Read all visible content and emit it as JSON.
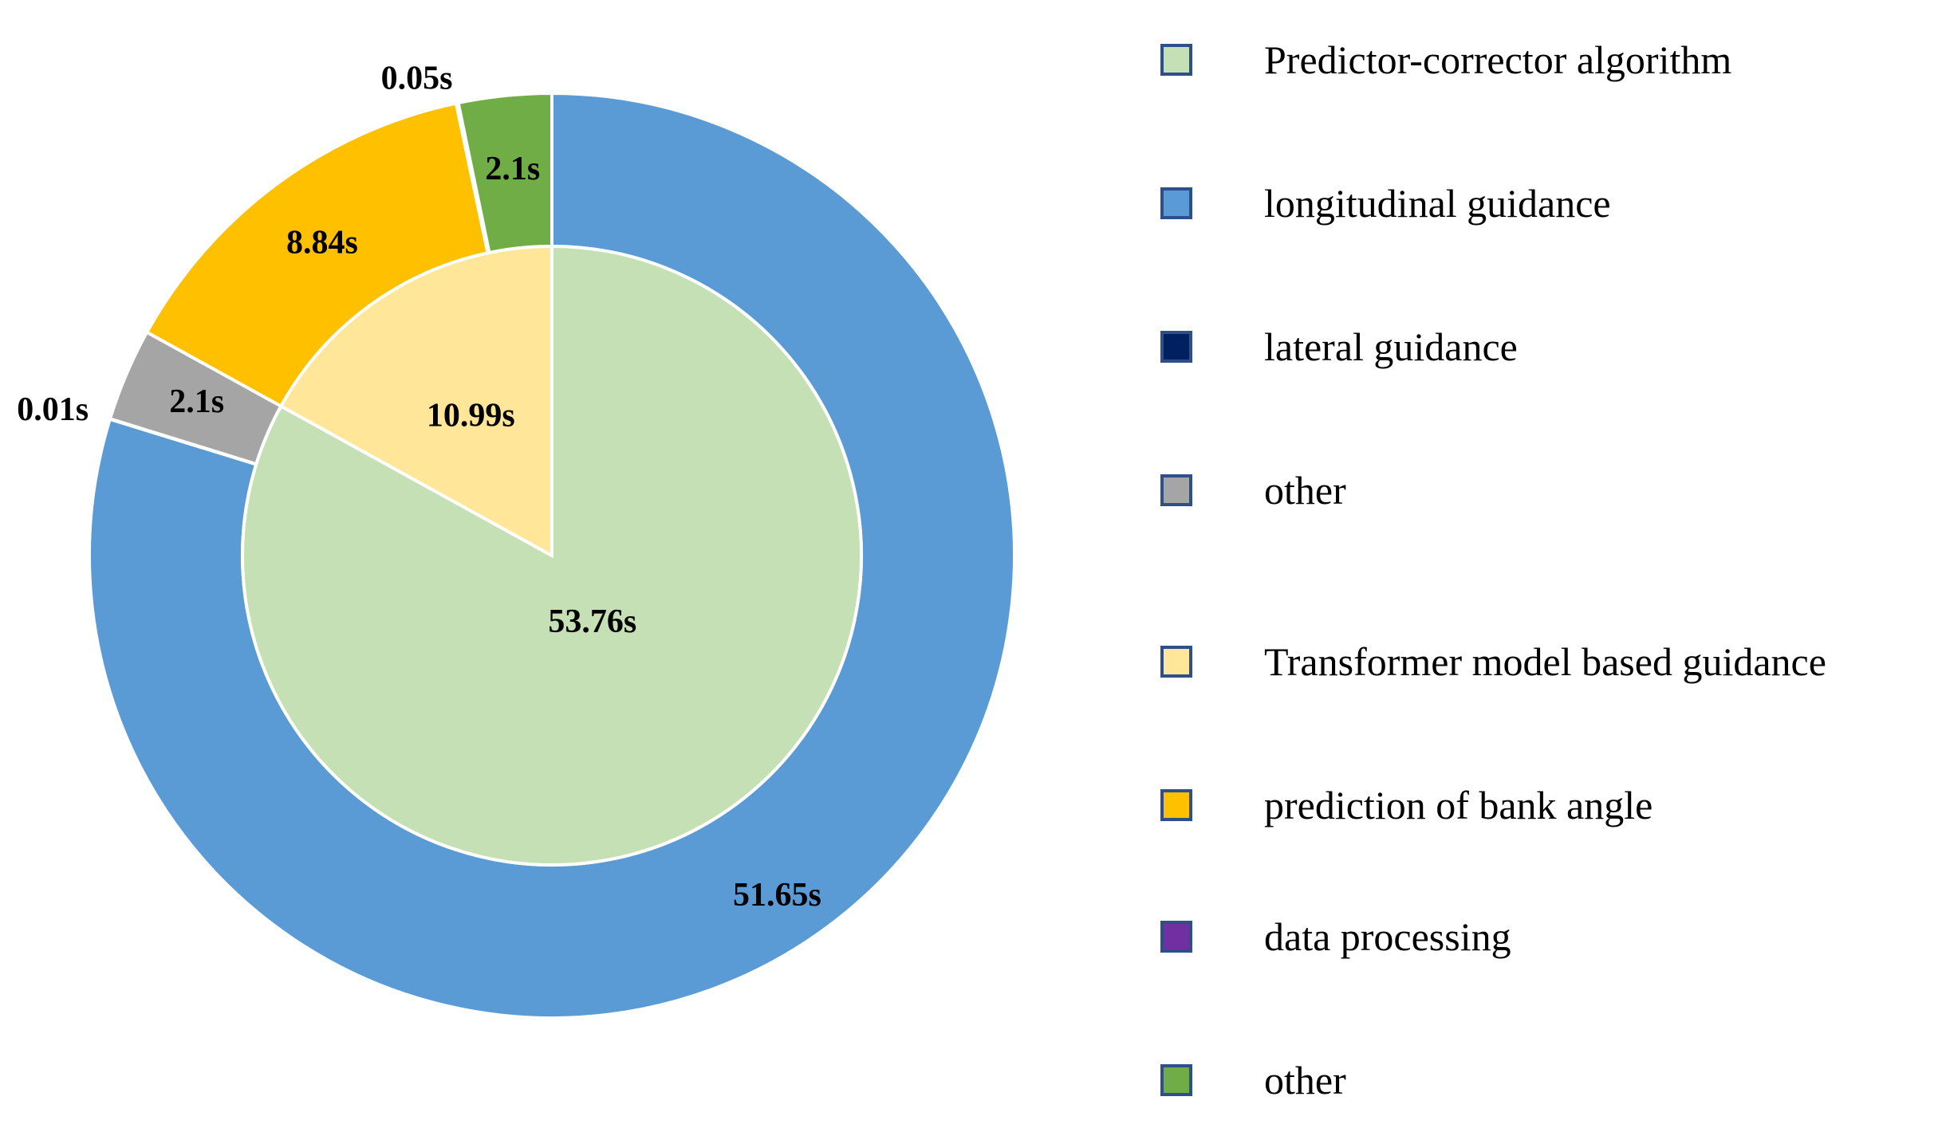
{
  "chart_data": {
    "type": "pie",
    "title": "",
    "outer_ring": {
      "name": "Predictor-corrector algorithm",
      "slices": [
        {
          "label": "longitudinal guidance",
          "value": 51.65,
          "value_label": "51.65s",
          "color": "#5B9BD5"
        },
        {
          "label": "lateral guidance",
          "value": 0.01,
          "value_label": "0.01s",
          "color": "#002060"
        },
        {
          "label": "other",
          "value": 2.1,
          "value_label": "2.1s",
          "color": "#A5A5A5"
        },
        {
          "label": "prediction of bank angle",
          "value": 8.84,
          "value_label": "8.84s",
          "color": "#FFC000"
        },
        {
          "label": "data processing",
          "value": 0.05,
          "value_label": "0.05s",
          "color": "#7030A0"
        },
        {
          "label": "other",
          "value": 2.1,
          "value_label": "2.1s",
          "color": "#70AD47"
        }
      ]
    },
    "inner_pie": {
      "slices": [
        {
          "label": "Predictor-corrector algorithm",
          "value": 53.76,
          "value_label": "53.76s",
          "color": "#C5E0B4"
        },
        {
          "label": "Transformer model based guidance",
          "value": 10.99,
          "value_label": "10.99s",
          "color": "#FFE699"
        }
      ]
    },
    "legend": [
      {
        "label": "Predictor-corrector algorithm",
        "color": "#C5E0B4"
      },
      {
        "label": "longitudinal guidance",
        "color": "#5B9BD5"
      },
      {
        "label": "lateral guidance",
        "color": "#002060"
      },
      {
        "label": "other",
        "color": "#A5A5A5"
      },
      {
        "label": "Transformer model based guidance",
        "color": "#FFE699"
      },
      {
        "label": "prediction of bank angle",
        "color": "#FFC000"
      },
      {
        "label": "data processing",
        "color": "#7030A0"
      },
      {
        "label": "other",
        "color": "#70AD47"
      }
    ],
    "legend_position": "right"
  }
}
